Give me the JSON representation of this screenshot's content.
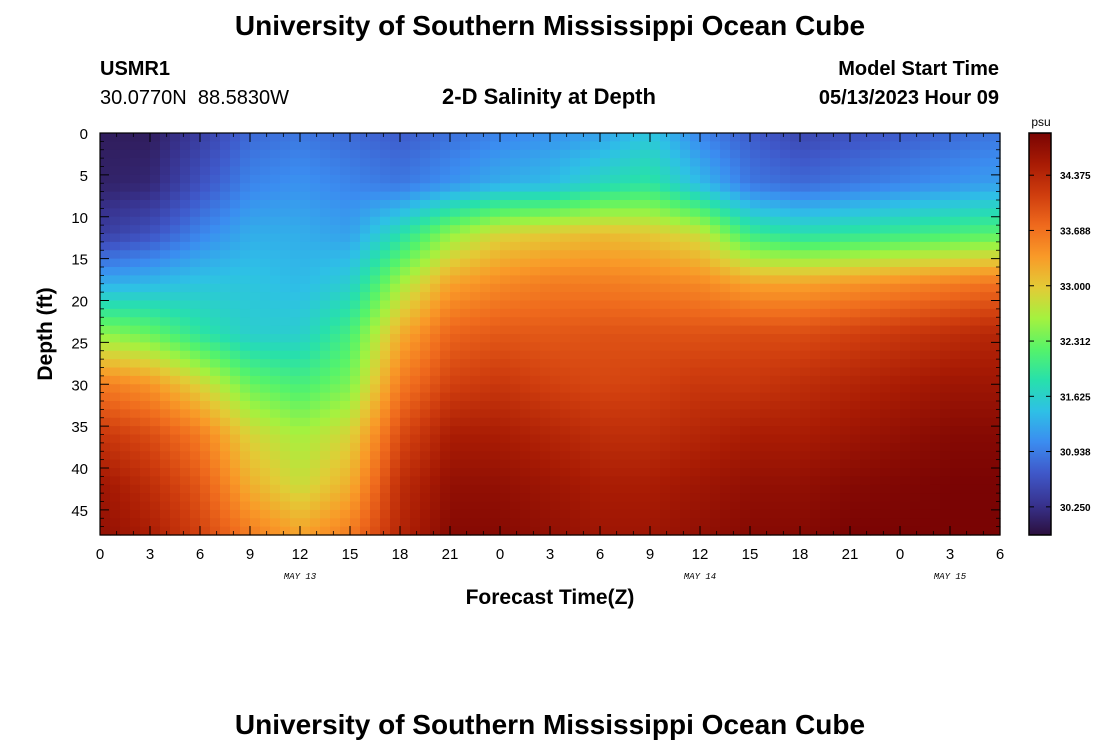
{
  "header": {
    "title": "University of Southern Mississippi Ocean Cube",
    "station_id": "USMR1",
    "station_coords": "30.0770N  88.5830W",
    "plot_title": "2-D Salinity at Depth",
    "model_start_label": "Model Start Time",
    "model_start_value": "05/13/2023 Hour 09"
  },
  "footer": {
    "title": "University of Southern Mississippi Ocean Cube"
  },
  "chart_data": {
    "type": "heatmap",
    "title": "2-D Salinity at Depth",
    "xlabel": "Forecast Time(Z)",
    "ylabel": "Depth (ft)",
    "x_tick_labels": [
      "0",
      "3",
      "6",
      "9",
      "12",
      "15",
      "18",
      "21",
      "0",
      "3",
      "6",
      "9",
      "12",
      "15",
      "18",
      "21",
      "0",
      "3",
      "6"
    ],
    "x_hours": [
      0,
      3,
      6,
      9,
      12,
      15,
      18,
      21,
      24,
      27,
      30,
      33,
      36,
      39,
      42,
      45,
      48,
      51,
      54
    ],
    "date_labels": [
      {
        "label": "MAY 13",
        "hour": 12
      },
      {
        "label": "MAY 14",
        "hour": 36
      },
      {
        "label": "MAY 15",
        "hour": 51
      }
    ],
    "y_ticks": [
      0,
      5,
      10,
      15,
      20,
      25,
      30,
      35,
      40,
      45
    ],
    "ylim": [
      0,
      48
    ],
    "xlim": [
      0,
      54
    ],
    "y_inverted": true,
    "colorbar": {
      "unit": "psu",
      "ticks": [
        "34.375",
        "33.688",
        "33.000",
        "32.312",
        "31.625",
        "30.938",
        "30.250"
      ],
      "tick_values": [
        34.375,
        33.688,
        33.0,
        32.312,
        31.625,
        30.938,
        30.25
      ],
      "range": [
        29.9,
        34.9
      ],
      "colors": [
        "#2b0f3d",
        "#38338f",
        "#3f58c9",
        "#3b8cf0",
        "#2ec0e6",
        "#27e0ac",
        "#55f36a",
        "#a4f23f",
        "#e3cb36",
        "#f99a28",
        "#ef6a1d",
        "#cf3d0e",
        "#a81b04",
        "#7a0403"
      ]
    },
    "columns_hours": [
      0,
      3,
      6,
      9,
      12,
      15,
      18,
      21,
      24,
      27,
      30,
      33,
      36,
      39,
      42,
      45,
      48,
      51,
      54
    ],
    "rows_depth": [
      0,
      6,
      12,
      18,
      24,
      30,
      36,
      42,
      48
    ],
    "salinity": [
      [
        30.05,
        30.05,
        30.4,
        30.8,
        30.9,
        30.8,
        30.7,
        30.85,
        31.0,
        31.1,
        31.2,
        31.5,
        31.0,
        30.7,
        30.5,
        30.6,
        30.7,
        30.8,
        30.9
      ],
      [
        30.1,
        30.15,
        30.6,
        31.0,
        31.1,
        31.0,
        30.9,
        31.1,
        31.3,
        31.4,
        31.7,
        31.9,
        31.4,
        30.9,
        30.8,
        30.9,
        31.0,
        31.1,
        31.2
      ],
      [
        30.4,
        30.6,
        31.0,
        31.3,
        31.3,
        31.2,
        31.8,
        32.5,
        32.9,
        33.0,
        33.1,
        33.0,
        32.8,
        32.0,
        31.8,
        31.9,
        32.0,
        32.1,
        32.2
      ],
      [
        31.3,
        31.4,
        31.5,
        31.5,
        31.4,
        31.6,
        32.6,
        33.3,
        33.5,
        33.6,
        33.6,
        33.55,
        33.5,
        33.3,
        33.3,
        33.4,
        33.5,
        33.6,
        33.7
      ],
      [
        32.5,
        32.3,
        31.9,
        31.6,
        31.6,
        32.1,
        33.2,
        33.8,
        33.9,
        33.9,
        33.95,
        33.95,
        33.95,
        34.0,
        34.0,
        34.1,
        34.2,
        34.3,
        34.4
      ],
      [
        33.6,
        33.4,
        32.9,
        32.3,
        32.1,
        32.4,
        33.6,
        34.1,
        34.2,
        34.1,
        34.05,
        34.1,
        34.2,
        34.2,
        34.3,
        34.4,
        34.5,
        34.6,
        34.6
      ],
      [
        34.2,
        34.0,
        33.6,
        32.9,
        32.6,
        32.9,
        34.0,
        34.5,
        34.5,
        34.4,
        34.3,
        34.3,
        34.4,
        34.5,
        34.5,
        34.6,
        34.7,
        34.8,
        34.8
      ],
      [
        34.6,
        34.3,
        33.9,
        33.2,
        32.8,
        33.2,
        34.3,
        34.7,
        34.7,
        34.6,
        34.5,
        34.5,
        34.6,
        34.7,
        34.7,
        34.8,
        34.85,
        34.9,
        34.9
      ],
      [
        34.7,
        34.5,
        34.1,
        33.6,
        33.3,
        33.6,
        34.4,
        34.8,
        34.8,
        34.7,
        34.6,
        34.6,
        34.7,
        34.8,
        34.8,
        34.9,
        34.9,
        34.9,
        34.9
      ]
    ]
  }
}
